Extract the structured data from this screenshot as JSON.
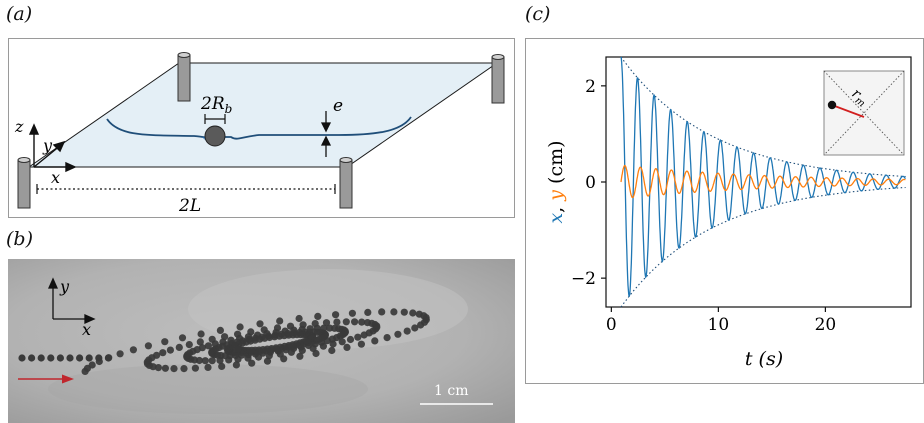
{
  "figure": {
    "panel_a": {
      "label": "(a)",
      "labels": {
        "bead": "2R",
        "bead_sub": "b",
        "thickness": "e",
        "length": "2L",
        "x": "x",
        "y": "y",
        "z": "z"
      }
    },
    "panel_b": {
      "label": "(b)",
      "axes": {
        "x": "x",
        "y": "y"
      },
      "scale_bar": "1 cm",
      "colors": {
        "arrow": "#c0262d",
        "background": "#b4b4b4",
        "bead": "#3a3a3a"
      }
    },
    "panel_c": {
      "label": "(c)",
      "inset": {
        "label": "r",
        "label_sub": "m"
      }
    }
  },
  "chart_data": {
    "type": "line",
    "xlabel": "t (s)",
    "ylabel_parts": [
      "x",
      ", ",
      "y",
      " (cm)"
    ],
    "xlim": [
      -0.5,
      28
    ],
    "ylim": [
      -2.6,
      2.6
    ],
    "xticks": [
      0,
      10,
      20
    ],
    "yticks": [
      -2,
      0,
      2
    ],
    "grid": false,
    "series": [
      {
        "name": "x",
        "color": "#1f77b4",
        "amplitude_cm": 2.6,
        "period_s": 1.55,
        "decay_time_s": 8.5,
        "t_start_s": 0.9,
        "t_end_s": 27.5
      },
      {
        "name": "y",
        "color": "#ff7f0e",
        "amplitude_cm": 0.35,
        "period_s": 1.45,
        "decay_time_s": 14,
        "t_start_s": 0.9,
        "t_end_s": 27.5
      }
    ],
    "envelope": {
      "style": "dotted",
      "color": "#1f4e79",
      "amplitude_cm": 2.6,
      "decay_time_s": 8.5
    }
  }
}
